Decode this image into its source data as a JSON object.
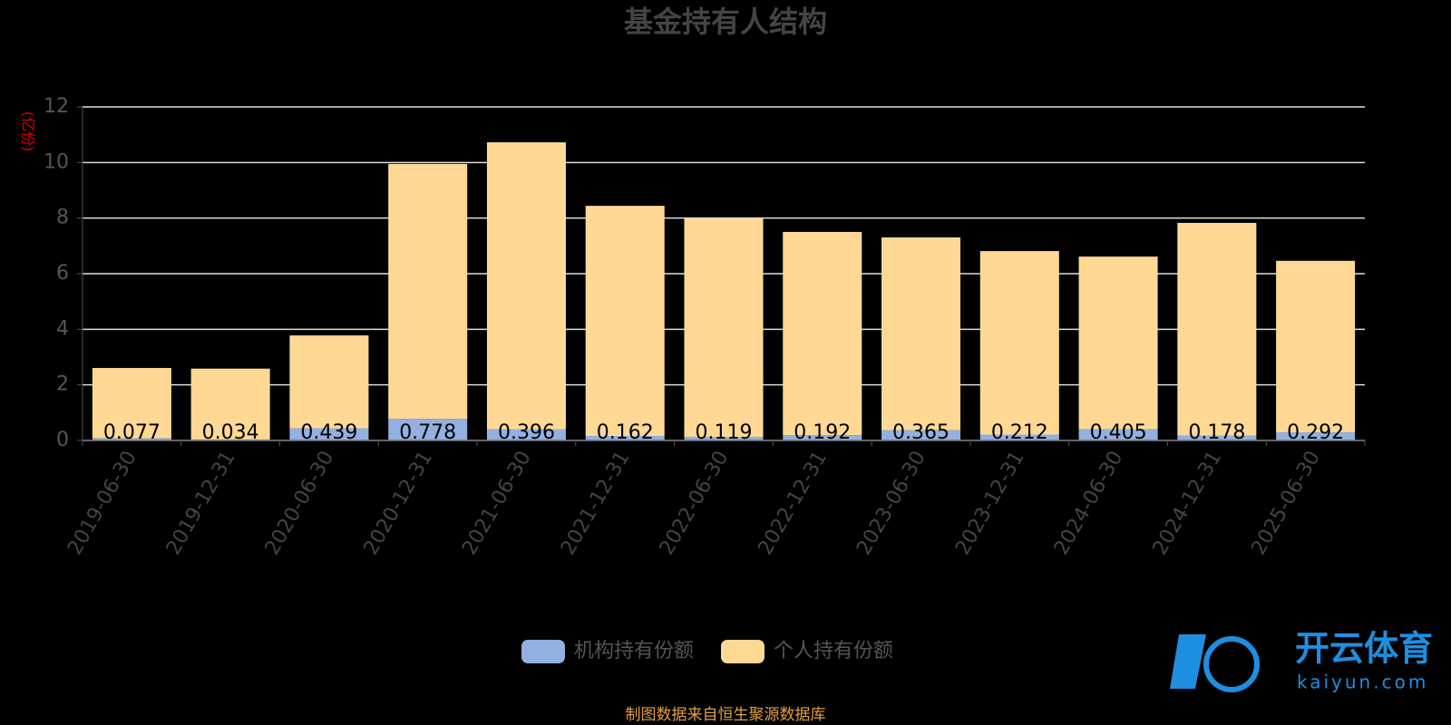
{
  "chart_data": {
    "type": "bar",
    "stacked": true,
    "title": "基金持有人结构",
    "y_label": "(亿份)",
    "categories": [
      "2019-06-30",
      "2019-12-31",
      "2020-06-30",
      "2020-12-31",
      "2021-06-30",
      "2021-12-31",
      "2022-06-30",
      "2022-12-31",
      "2023-06-30",
      "2023-12-31",
      "2024-06-30",
      "2024-12-31",
      "2025-06-30"
    ],
    "series": [
      {
        "name": "机构持有份额",
        "color": "#92b0e0",
        "values": [
          0.077,
          0.034,
          0.439,
          0.778,
          0.396,
          0.162,
          0.119,
          0.192,
          0.365,
          0.212,
          0.405,
          0.178,
          0.292
        ]
      },
      {
        "name": "个人持有份额",
        "color": "#ffd994",
        "values": [
          2.53,
          2.55,
          3.34,
          9.17,
          10.33,
          8.28,
          7.87,
          7.31,
          6.94,
          6.6,
          6.21,
          7.65,
          6.17
        ]
      }
    ],
    "ylim": [
      0,
      12
    ],
    "yticks": [
      0,
      2,
      4,
      6,
      8,
      10,
      12
    ],
    "grid": true,
    "source": "制图数据来自恒生聚源数据库",
    "watermark": [
      "开云体育",
      "kaiyun.com"
    ]
  }
}
